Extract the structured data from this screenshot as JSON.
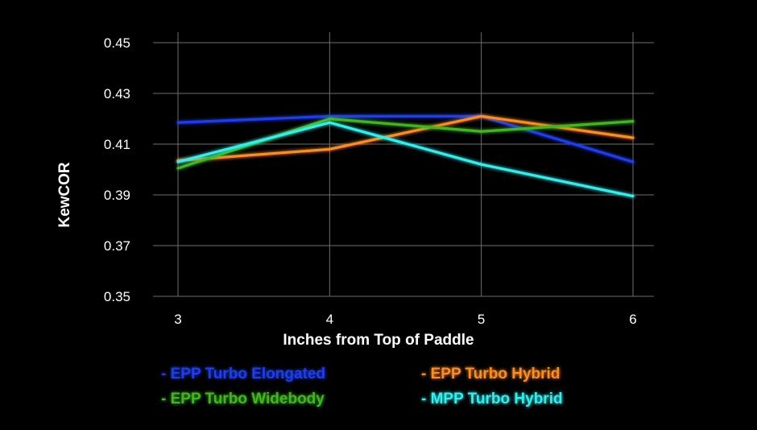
{
  "chart_data": {
    "type": "line",
    "title": "",
    "xlabel": "Inches from Top of Paddle",
    "ylabel": "KewCOR",
    "x": [
      3,
      4,
      5,
      6
    ],
    "x_tick_labels": [
      "3",
      "4",
      "5",
      "6"
    ],
    "ylim": [
      0.35,
      0.45
    ],
    "y_ticks": [
      0.35,
      0.37,
      0.39,
      0.41,
      0.43,
      0.45
    ],
    "y_tick_labels": [
      "0.35",
      "0.37",
      "0.39",
      "0.41",
      "0.43",
      "0.45"
    ],
    "grid": true,
    "legend_position": "bottom",
    "series": [
      {
        "name": "EPP Turbo Elongated",
        "legend_label": "- EPP Turbo Elongated",
        "color": "#1f3cf0",
        "values": [
          0.4185,
          0.421,
          0.421,
          0.403
        ]
      },
      {
        "name": "EPP Turbo Hybrid",
        "legend_label": "- EPP Turbo Hybrid",
        "color": "#ff8c1a",
        "values": [
          0.4035,
          0.408,
          0.421,
          0.4125
        ]
      },
      {
        "name": "EPP Turbo Widebody",
        "legend_label": "- EPP Turbo Widebody",
        "color": "#3fb81f",
        "values": [
          0.4005,
          0.42,
          0.415,
          0.419
        ]
      },
      {
        "name": "MPP Turbo Hybrid",
        "legend_label": "- MPP Turbo Hybrid",
        "color": "#2ff0ee",
        "values": [
          0.403,
          0.4185,
          0.402,
          0.3895
        ]
      }
    ]
  }
}
